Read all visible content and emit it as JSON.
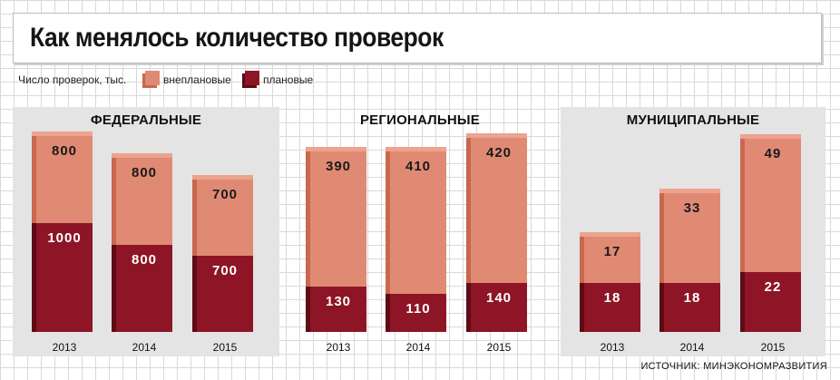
{
  "title": "Как менялось количество проверок",
  "legend": {
    "label": "Число проверок, тыс.",
    "unplanned": "внеплановые",
    "planned": "плановые"
  },
  "colors": {
    "unplanned": "#e08a74",
    "planned": "#8e1526"
  },
  "source": "ИСТОЧНИК: МИНЭКОНОМРАЗВИТИЯ",
  "chart_data": [
    {
      "type": "bar",
      "title": "ФЕДЕРАЛЬНЫЕ",
      "categories": [
        "2013",
        "2014",
        "2015"
      ],
      "series": [
        {
          "name": "плановые",
          "values": [
            1000,
            800,
            700
          ]
        },
        {
          "name": "внеплановые",
          "values": [
            800,
            800,
            700
          ]
        }
      ],
      "ylim": [
        0,
        1850
      ],
      "stacked": true
    },
    {
      "type": "bar",
      "title": "РЕГИОНАЛЬНЫЕ",
      "categories": [
        "2013",
        "2014",
        "2015"
      ],
      "series": [
        {
          "name": "плановые",
          "values": [
            130,
            110,
            140
          ]
        },
        {
          "name": "внеплановые",
          "values": [
            390,
            410,
            420
          ]
        }
      ],
      "ylim": [
        0,
        580
      ],
      "stacked": true
    },
    {
      "type": "bar",
      "title": "МУНИЦИПАЛЬНЫЕ",
      "categories": [
        "2013",
        "2014",
        "2015"
      ],
      "series": [
        {
          "name": "плановые",
          "values": [
            18,
            18,
            22
          ]
        },
        {
          "name": "внеплановые",
          "values": [
            17,
            33,
            49
          ]
        }
      ],
      "ylim": [
        0,
        74
      ],
      "stacked": true
    }
  ]
}
